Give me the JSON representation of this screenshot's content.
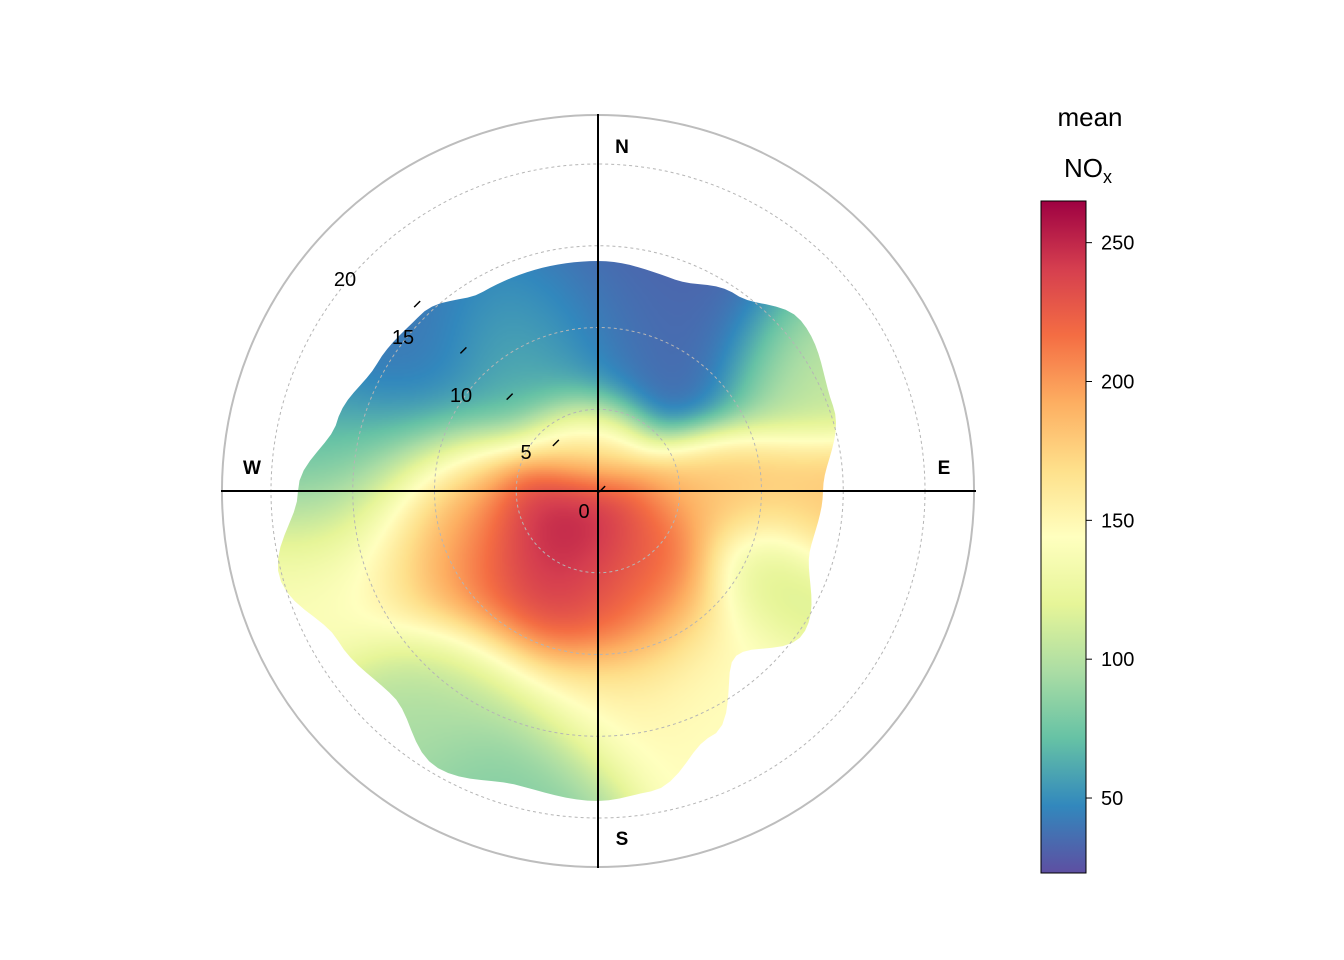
{
  "chart_data": {
    "type": "heatmap",
    "subtype": "polar-plot",
    "title": "",
    "directions": {
      "north": "N",
      "east": "E",
      "south": "S",
      "west": "W"
    },
    "radial_axis": {
      "range": [
        0,
        23
      ],
      "ticks": [
        "0",
        "5",
        "10",
        "15",
        "20"
      ]
    },
    "grid": true,
    "legend": {
      "title_line1": "mean",
      "title_line2_main": "NO",
      "title_line2_sub": "x",
      "position": "right",
      "range": [
        23,
        265
      ],
      "ticks": [
        "50",
        "100",
        "150",
        "200",
        "250"
      ],
      "colors": [
        "#5e4fa2",
        "#3288bd",
        "#66c2a5",
        "#abdda4",
        "#e6f598",
        "#ffffbf",
        "#fee08b",
        "#fdae61",
        "#f46d43",
        "#d53e4f",
        "#9e0142"
      ]
    },
    "peak": {
      "value": 265,
      "direction_deg": 230,
      "speed": 3
    },
    "regions": [
      {
        "description": "low values to the north",
        "direction_deg": 0,
        "speed": 13,
        "value": 30
      },
      {
        "description": "high values to the south-west",
        "direction_deg": 225,
        "speed": 5,
        "value": 250
      },
      {
        "description": "moderate values to the east",
        "direction_deg": 90,
        "speed": 15,
        "value": 180
      },
      {
        "description": "low-moderate values far south",
        "direction_deg": 190,
        "speed": 18,
        "value": 100
      }
    ]
  }
}
